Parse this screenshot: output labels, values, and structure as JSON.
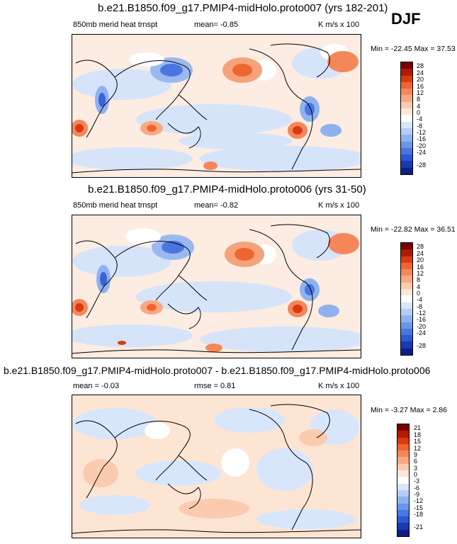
{
  "season": "DJF",
  "panels": [
    {
      "title": "b.e21.B1850.f09_g17.PMIP4-midHolo.proto007 (yrs 182-201)",
      "left_label": "850mb merid heat trnspt",
      "mid_label": "mean=  -0.85",
      "right_label": "K m/s x 100",
      "minmax": "Min = -22.45  Max =  37.53",
      "colorbar": {
        "labels": [
          "28",
          "24",
          "20",
          "16",
          "12",
          "8",
          "4",
          "0",
          "-4",
          "-8",
          "-12",
          "-16",
          "-20",
          "-24",
          "-28"
        ],
        "colors": [
          "#7a0000",
          "#b01a00",
          "#d93a10",
          "#ef6530",
          "#f4875a",
          "#f8a984",
          "#fbcbb0",
          "#fde7d9",
          "#ffffff",
          "#d8e6fb",
          "#b6cef6",
          "#8fb2ef",
          "#6c95e8",
          "#4a76e0",
          "#2f58d3",
          "#1a38b0",
          "#0b1f8a"
        ]
      }
    },
    {
      "title": "b.e21.B1850.f09_g17.PMIP4-midHolo.proto006 (yrs 31-50)",
      "left_label": "850mb merid heat trnspt",
      "mid_label": "mean=  -0.82",
      "right_label": "K m/s x 100",
      "minmax": "Min = -22.82  Max =  36.51",
      "colorbar": {
        "labels": [
          "28",
          "24",
          "20",
          "16",
          "12",
          "8",
          "4",
          "0",
          "-4",
          "-8",
          "-12",
          "-16",
          "-20",
          "-24",
          "-28"
        ],
        "colors": [
          "#7a0000",
          "#b01a00",
          "#d93a10",
          "#ef6530",
          "#f4875a",
          "#f8a984",
          "#fbcbb0",
          "#fde7d9",
          "#ffffff",
          "#d8e6fb",
          "#b6cef6",
          "#8fb2ef",
          "#6c95e8",
          "#4a76e0",
          "#2f58d3",
          "#1a38b0",
          "#0b1f8a"
        ]
      }
    },
    {
      "title": "b.e21.B1850.f09_g17.PMIP4-midHolo.proto007 - b.e21.B1850.f09_g17.PMIP4-midHolo.proto006",
      "left_label": "mean =  -0.03",
      "mid_label": "rmse =  0.81",
      "right_label": "K m/s x 100",
      "minmax": "Min =  -3.27  Max =   2.86",
      "colorbar": {
        "labels": [
          "21",
          "18",
          "15",
          "12",
          "9",
          "6",
          "3",
          "0",
          "-3",
          "-6",
          "-9",
          "-12",
          "-15",
          "-18",
          "-21"
        ],
        "colors": [
          "#7a0000",
          "#b01a00",
          "#d93a10",
          "#ef6530",
          "#f4875a",
          "#f8a984",
          "#fbcbb0",
          "#fde7d9",
          "#ffffff",
          "#d8e6fb",
          "#b6cef6",
          "#8fb2ef",
          "#6c95e8",
          "#4a76e0",
          "#2f58d3",
          "#1a38b0",
          "#0b1f8a"
        ]
      }
    }
  ]
}
